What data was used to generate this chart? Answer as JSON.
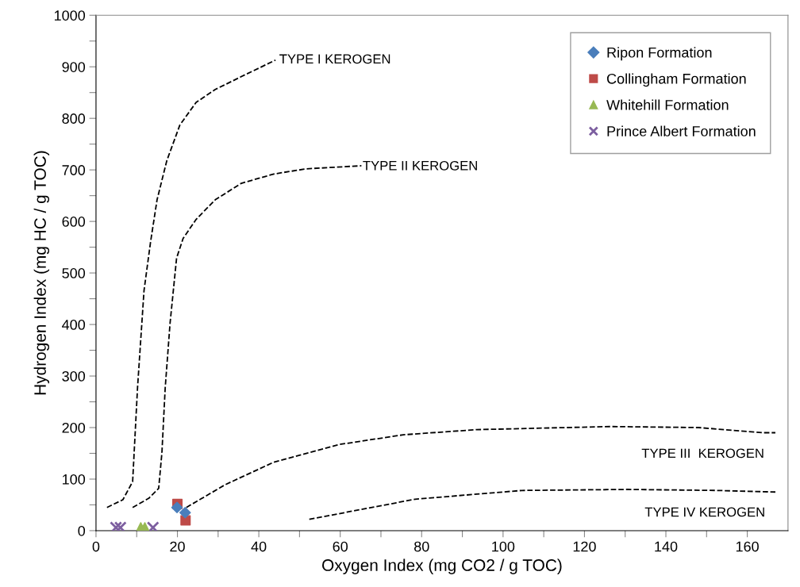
{
  "chart_data": {
    "type": "scatter",
    "xlabel": "Oxygen Index (mg CO2 / g TOC)",
    "ylabel": "Hydrogen Index (mg HC / g TOC)",
    "xlim": [
      0,
      170
    ],
    "ylim": [
      0,
      1000
    ],
    "xticks": [
      0,
      {
        "value": 10,
        "label": null
      },
      20,
      {
        "value": 30,
        "label": null
      },
      40,
      {
        "value": 50,
        "label": null
      },
      60,
      {
        "value": 70,
        "label": null
      },
      80,
      {
        "value": 90,
        "label": null
      },
      100,
      {
        "value": 110,
        "label": null
      },
      120,
      {
        "value": 130,
        "label": null
      },
      140,
      {
        "value": 150,
        "label": null
      },
      160
    ],
    "yticks": [
      0,
      {
        "value": 50,
        "label": null
      },
      100,
      {
        "value": 150,
        "label": null
      },
      200,
      {
        "value": 250,
        "label": null
      },
      300,
      {
        "value": 350,
        "label": null
      },
      400,
      {
        "value": 450,
        "label": null
      },
      500,
      {
        "value": 550,
        "label": null
      },
      600,
      {
        "value": 650,
        "label": null
      },
      700,
      {
        "value": 750,
        "label": null
      },
      800,
      {
        "value": 850,
        "label": null
      },
      900,
      {
        "value": 950,
        "label": null
      },
      1000
    ],
    "grid": false,
    "legend": "top right",
    "series": [
      {
        "name": "Ripon Formation",
        "color": "#4a7ebb",
        "marker": "diamond",
        "x": [
          19.9,
          21.9
        ],
        "values": [
          45,
          35
        ]
      },
      {
        "name": "Collingham Formation",
        "color": "#be4b48",
        "marker": "square",
        "x": [
          20,
          22
        ],
        "values": [
          52,
          20
        ]
      },
      {
        "name": "Whitehill Formation",
        "color": "#98b954",
        "marker": "triangle",
        "x": [
          11,
          12
        ],
        "values": [
          6,
          6
        ]
      },
      {
        "name": "Prince Albert Formation",
        "color": "#7d5fa0",
        "marker": "cross",
        "x": [
          4.9,
          6,
          14
        ],
        "values": [
          6,
          6,
          6
        ]
      },
      {
        "type": "line",
        "color": "#000000",
        "line_style": "dashed",
        "marker": "none",
        "x": [
          2.7,
          6.6,
          9.0,
          10.2,
          11.8,
          13.4,
          15.0,
          17.4,
          20.6,
          24.6,
          29.3,
          35.7,
          44.1
        ],
        "values": [
          45,
          60,
          95,
          277,
          466,
          560,
          642,
          718,
          787,
          831,
          856,
          881,
          913
        ]
      },
      {
        "type": "line",
        "color": "#000000",
        "line_style": "dashed",
        "marker": "none",
        "x": [
          9.0,
          13.0,
          15.4,
          16.2,
          17.0,
          18.2,
          19.8,
          21.4,
          24.6,
          29.3,
          35.7,
          43.7,
          51.6,
          65.2
        ],
        "values": [
          45,
          63,
          82,
          152,
          277,
          403,
          529,
          567,
          604,
          642,
          674,
          692,
          702,
          708
        ]
      },
      {
        "type": "line",
        "color": "#000000",
        "line_style": "dashed",
        "marker": "none",
        "x": [
          22.2,
          31.7,
          43.7,
          59.6,
          75.5,
          93.5,
          126.4,
          148.1,
          163.8,
          166.9
        ],
        "values": [
          45,
          89,
          133,
          167,
          186,
          196,
          202,
          200,
          190,
          190
        ]
      },
      {
        "type": "line",
        "color": "#000000",
        "line_style": "dashed",
        "marker": "none",
        "x": [
          52.4,
          78.4,
          104.6,
          130.7,
          152.5,
          166.9
        ],
        "values": [
          22,
          61,
          78,
          80,
          78,
          75
        ]
      }
    ],
    "annotations": [
      {
        "text": "TYPE I KEROGEN",
        "x": 45,
        "y": 913
      },
      {
        "text": "TYPE II KEROGEN",
        "x": 65.5,
        "y": 706
      },
      "TYPE III  KEROGEN",
      "TYPE IV KEROGEN"
    ]
  }
}
